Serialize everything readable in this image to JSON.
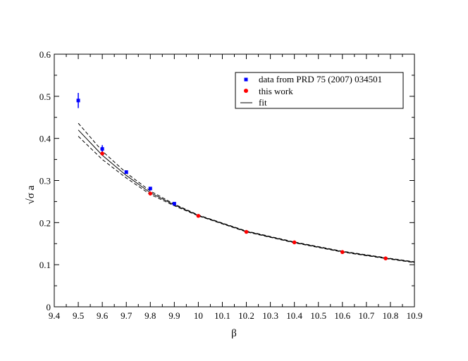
{
  "chart_data": {
    "type": "scatter",
    "title": "",
    "xlabel": "β",
    "ylabel": "√σ a",
    "xlim": [
      9.4,
      10.9
    ],
    "ylim": [
      0,
      0.6
    ],
    "x_ticks": [
      "9.4",
      "9.5",
      "9.6",
      "9.7",
      "9.8",
      "9.9",
      "10",
      "10.1",
      "10.2",
      "10.3",
      "10.4",
      "10.5",
      "10.6",
      "10.7",
      "10.8",
      "10.9"
    ],
    "y_ticks": [
      "0",
      "0.1",
      "0.2",
      "0.3",
      "0.4",
      "0.5",
      "0.6"
    ],
    "legend_position": "top-right",
    "grid": false,
    "series": [
      {
        "name": "data from PRD 75 (2007) 034501",
        "marker": "square",
        "color": "#0000ff",
        "points": [
          {
            "x": 9.5,
            "y": 0.49,
            "err": 0.018
          },
          {
            "x": 9.6,
            "y": 0.375,
            "err": 0.009
          },
          {
            "x": 9.7,
            "y": 0.32,
            "err": 0.004
          },
          {
            "x": 9.8,
            "y": 0.281,
            "err": 0.003
          },
          {
            "x": 9.9,
            "y": 0.245,
            "err": 0.002
          }
        ]
      },
      {
        "name": "this work",
        "marker": "circle",
        "color": "#ff0000",
        "points": [
          {
            "x": 9.6,
            "y": 0.364,
            "err": 0.004
          },
          {
            "x": 9.8,
            "y": 0.269,
            "err": 0.002
          },
          {
            "x": 10.0,
            "y": 0.216,
            "err": 0.001
          },
          {
            "x": 10.2,
            "y": 0.178,
            "err": 0.001
          },
          {
            "x": 10.4,
            "y": 0.153,
            "err": 0.001
          },
          {
            "x": 10.6,
            "y": 0.13,
            "err": 0.001
          },
          {
            "x": 10.78,
            "y": 0.115,
            "err": 0.001
          }
        ]
      },
      {
        "name": "fit",
        "line": "solid",
        "color": "#000000",
        "points": [
          {
            "x": 9.5,
            "y": 0.42
          },
          {
            "x": 9.6,
            "y": 0.36
          },
          {
            "x": 9.7,
            "y": 0.312
          },
          {
            "x": 9.8,
            "y": 0.271
          },
          {
            "x": 9.9,
            "y": 0.242
          },
          {
            "x": 10.0,
            "y": 0.217
          },
          {
            "x": 10.2,
            "y": 0.179
          },
          {
            "x": 10.4,
            "y": 0.153
          },
          {
            "x": 10.6,
            "y": 0.131
          },
          {
            "x": 10.8,
            "y": 0.114
          },
          {
            "x": 10.9,
            "y": 0.106
          }
        ]
      },
      {
        "name": "",
        "line": "dashed",
        "color": "#000000",
        "points": [
          {
            "x": 9.5,
            "y": 0.436
          },
          {
            "x": 9.6,
            "y": 0.37
          },
          {
            "x": 9.7,
            "y": 0.318
          },
          {
            "x": 9.8,
            "y": 0.275
          },
          {
            "x": 9.9,
            "y": 0.244
          },
          {
            "x": 10.0,
            "y": 0.218
          },
          {
            "x": 10.2,
            "y": 0.18
          },
          {
            "x": 10.4,
            "y": 0.154
          },
          {
            "x": 10.6,
            "y": 0.132
          },
          {
            "x": 10.8,
            "y": 0.115
          },
          {
            "x": 10.9,
            "y": 0.107
          }
        ]
      },
      {
        "name": "",
        "line": "dashed",
        "color": "#000000",
        "points": [
          {
            "x": 9.5,
            "y": 0.405
          },
          {
            "x": 9.6,
            "y": 0.35
          },
          {
            "x": 9.7,
            "y": 0.306
          },
          {
            "x": 9.8,
            "y": 0.267
          },
          {
            "x": 9.9,
            "y": 0.24
          },
          {
            "x": 10.0,
            "y": 0.216
          },
          {
            "x": 10.2,
            "y": 0.178
          },
          {
            "x": 10.4,
            "y": 0.152
          },
          {
            "x": 10.6,
            "y": 0.13
          },
          {
            "x": 10.8,
            "y": 0.113
          },
          {
            "x": 10.9,
            "y": 0.105
          }
        ]
      }
    ]
  }
}
